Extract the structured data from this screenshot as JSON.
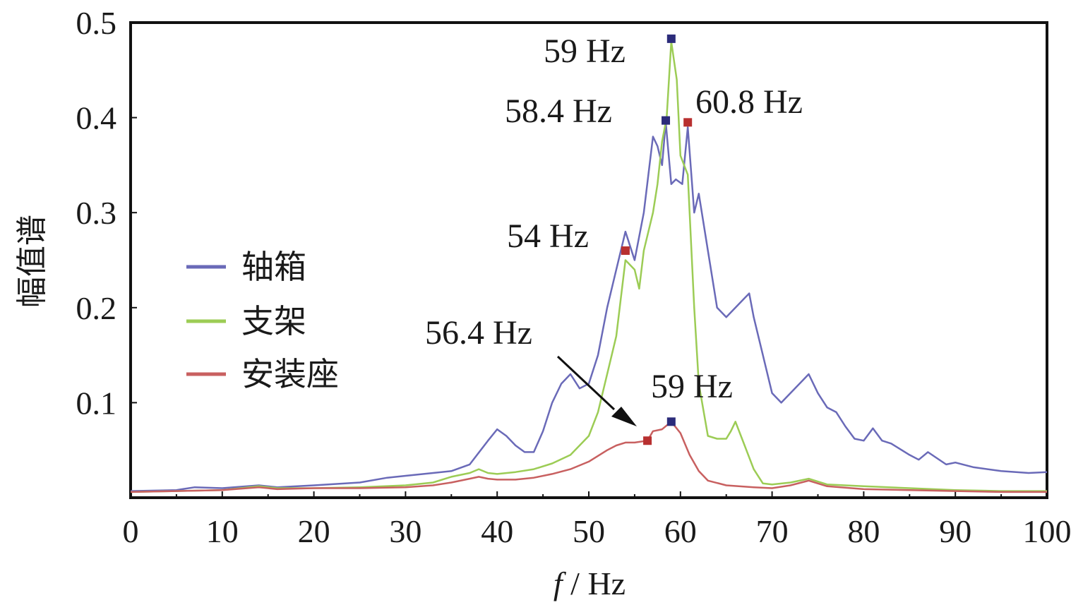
{
  "chart_data": {
    "type": "line",
    "xlabel_italic": "f",
    "xlabel_rest": " / Hz",
    "ylabel": "幅值谱",
    "xlim": [
      0,
      100
    ],
    "ylim": [
      0,
      0.5
    ],
    "x_ticks": [
      0,
      10,
      20,
      30,
      40,
      50,
      60,
      70,
      80,
      90,
      100
    ],
    "x_tick_labels": [
      "0",
      "10",
      "20",
      "30",
      "40",
      "50",
      "60",
      "70",
      "80",
      "90",
      "100"
    ],
    "y_ticks": [
      0.1,
      0.2,
      0.3,
      0.4,
      0.5
    ],
    "y_tick_labels": [
      "0.1",
      "0.2",
      "0.3",
      "0.4",
      "0.5"
    ],
    "legend_position": "left-center",
    "series": [
      {
        "name": "轴箱",
        "color": "#6a6ab8",
        "points": [
          [
            0,
            0.007
          ],
          [
            5,
            0.008
          ],
          [
            7,
            0.011
          ],
          [
            10,
            0.01
          ],
          [
            14,
            0.013
          ],
          [
            16,
            0.011
          ],
          [
            20,
            0.013
          ],
          [
            25,
            0.016
          ],
          [
            28,
            0.021
          ],
          [
            30,
            0.023
          ],
          [
            33,
            0.026
          ],
          [
            35,
            0.028
          ],
          [
            37,
            0.035
          ],
          [
            39,
            0.06
          ],
          [
            40,
            0.072
          ],
          [
            41,
            0.065
          ],
          [
            42,
            0.055
          ],
          [
            43,
            0.048
          ],
          [
            44,
            0.048
          ],
          [
            45,
            0.07
          ],
          [
            46,
            0.1
          ],
          [
            47,
            0.12
          ],
          [
            48,
            0.13
          ],
          [
            49,
            0.115
          ],
          [
            50,
            0.12
          ],
          [
            51,
            0.15
          ],
          [
            52,
            0.2
          ],
          [
            53,
            0.24
          ],
          [
            54,
            0.28
          ],
          [
            55,
            0.25
          ],
          [
            56,
            0.3
          ],
          [
            57,
            0.38
          ],
          [
            57.5,
            0.37
          ],
          [
            58,
            0.35
          ],
          [
            58.4,
            0.395
          ],
          [
            59,
            0.33
          ],
          [
            59.5,
            0.335
          ],
          [
            60.2,
            0.33
          ],
          [
            60.8,
            0.39
          ],
          [
            61.5,
            0.3
          ],
          [
            62,
            0.32
          ],
          [
            63,
            0.26
          ],
          [
            64,
            0.2
          ],
          [
            65,
            0.19
          ],
          [
            66,
            0.2
          ],
          [
            67,
            0.21
          ],
          [
            67.5,
            0.215
          ],
          [
            68,
            0.19
          ],
          [
            69,
            0.15
          ],
          [
            70,
            0.11
          ],
          [
            71,
            0.1
          ],
          [
            72,
            0.11
          ],
          [
            73,
            0.12
          ],
          [
            74,
            0.13
          ],
          [
            75,
            0.11
          ],
          [
            76,
            0.095
          ],
          [
            77,
            0.09
          ],
          [
            78,
            0.075
          ],
          [
            79,
            0.062
          ],
          [
            80,
            0.06
          ],
          [
            81,
            0.073
          ],
          [
            82,
            0.06
          ],
          [
            83,
            0.057
          ],
          [
            85,
            0.045
          ],
          [
            86,
            0.04
          ],
          [
            87,
            0.048
          ],
          [
            89,
            0.035
          ],
          [
            90,
            0.037
          ],
          [
            92,
            0.032
          ],
          [
            95,
            0.028
          ],
          [
            98,
            0.026
          ],
          [
            100,
            0.027
          ]
        ]
      },
      {
        "name": "支架",
        "color": "#9ccc55",
        "points": [
          [
            0,
            0.006
          ],
          [
            5,
            0.007
          ],
          [
            10,
            0.008
          ],
          [
            14,
            0.012
          ],
          [
            16,
            0.01
          ],
          [
            20,
            0.01
          ],
          [
            25,
            0.011
          ],
          [
            30,
            0.013
          ],
          [
            33,
            0.016
          ],
          [
            35,
            0.022
          ],
          [
            37,
            0.026
          ],
          [
            38,
            0.03
          ],
          [
            39,
            0.026
          ],
          [
            40,
            0.025
          ],
          [
            42,
            0.027
          ],
          [
            44,
            0.03
          ],
          [
            46,
            0.036
          ],
          [
            48,
            0.045
          ],
          [
            50,
            0.065
          ],
          [
            51,
            0.09
          ],
          [
            52,
            0.13
          ],
          [
            53,
            0.17
          ],
          [
            54,
            0.25
          ],
          [
            55,
            0.24
          ],
          [
            55.5,
            0.22
          ],
          [
            56,
            0.26
          ],
          [
            57,
            0.3
          ],
          [
            57.5,
            0.33
          ],
          [
            58,
            0.375
          ],
          [
            58.5,
            0.4
          ],
          [
            59,
            0.48
          ],
          [
            59.6,
            0.44
          ],
          [
            60,
            0.36
          ],
          [
            60.8,
            0.34
          ],
          [
            61.5,
            0.2
          ],
          [
            62,
            0.12
          ],
          [
            63,
            0.065
          ],
          [
            64,
            0.062
          ],
          [
            65,
            0.062
          ],
          [
            65.5,
            0.07
          ],
          [
            66,
            0.08
          ],
          [
            67,
            0.055
          ],
          [
            68,
            0.03
          ],
          [
            69,
            0.015
          ],
          [
            70,
            0.014
          ],
          [
            72,
            0.016
          ],
          [
            74,
            0.02
          ],
          [
            76,
            0.014
          ],
          [
            80,
            0.012
          ],
          [
            85,
            0.01
          ],
          [
            90,
            0.008
          ],
          [
            95,
            0.007
          ],
          [
            100,
            0.007
          ]
        ]
      },
      {
        "name": "安装座",
        "color": "#c86060",
        "points": [
          [
            0,
            0.006
          ],
          [
            5,
            0.007
          ],
          [
            10,
            0.008
          ],
          [
            14,
            0.011
          ],
          [
            16,
            0.009
          ],
          [
            20,
            0.01
          ],
          [
            25,
            0.01
          ],
          [
            30,
            0.011
          ],
          [
            33,
            0.013
          ],
          [
            35,
            0.016
          ],
          [
            37,
            0.02
          ],
          [
            38,
            0.022
          ],
          [
            39,
            0.02
          ],
          [
            40,
            0.019
          ],
          [
            42,
            0.019
          ],
          [
            44,
            0.021
          ],
          [
            46,
            0.025
          ],
          [
            48,
            0.03
          ],
          [
            50,
            0.038
          ],
          [
            52,
            0.05
          ],
          [
            53,
            0.055
          ],
          [
            54,
            0.058
          ],
          [
            55,
            0.058
          ],
          [
            56.4,
            0.06
          ],
          [
            57,
            0.07
          ],
          [
            58,
            0.072
          ],
          [
            59,
            0.08
          ],
          [
            60,
            0.068
          ],
          [
            61,
            0.045
          ],
          [
            62,
            0.028
          ],
          [
            63,
            0.018
          ],
          [
            65,
            0.013
          ],
          [
            68,
            0.011
          ],
          [
            70,
            0.01
          ],
          [
            72,
            0.013
          ],
          [
            74,
            0.018
          ],
          [
            76,
            0.012
          ],
          [
            80,
            0.009
          ],
          [
            85,
            0.008
          ],
          [
            90,
            0.007
          ],
          [
            95,
            0.006
          ],
          [
            100,
            0.006
          ]
        ]
      }
    ],
    "markers": [
      {
        "x": 59,
        "y": 0.483,
        "color": "#2b2b7a"
      },
      {
        "x": 58.4,
        "y": 0.397,
        "color": "#2b2b7a"
      },
      {
        "x": 60.8,
        "y": 0.395,
        "color": "#b83030"
      },
      {
        "x": 54,
        "y": 0.26,
        "color": "#b83030"
      },
      {
        "x": 56.4,
        "y": 0.06,
        "color": "#b83030"
      },
      {
        "x": 59,
        "y": 0.08,
        "color": "#2b2b7a"
      }
    ],
    "annotations": [
      {
        "text": "59 Hz"
      },
      {
        "text": "58.4 Hz"
      },
      {
        "text": "60.8 Hz"
      },
      {
        "text": "54 Hz"
      },
      {
        "text": "56.4 Hz"
      },
      {
        "text": "59 Hz"
      }
    ]
  }
}
